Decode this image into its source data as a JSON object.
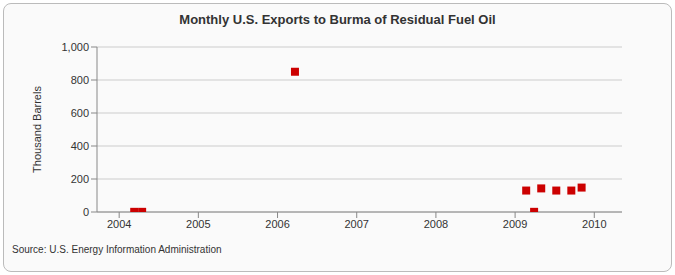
{
  "chart_data": {
    "type": "scatter",
    "title": "Monthly U.S. Exports to Burma of Residual Fuel Oil",
    "y_label": "Thousand Barrels",
    "source": "Source: U.S. Energy Information Administration",
    "x": [
      2004.19,
      2004.29,
      2006.22,
      2009.14,
      2009.24,
      2009.33,
      2009.52,
      2009.71,
      2009.84
    ],
    "values": [
      1,
      1,
      850,
      130,
      1,
      143,
      130,
      130,
      148
    ],
    "color": "#cc0000",
    "marker": "square",
    "xlim": [
      2003.72,
      2010.35
    ],
    "xticks": [
      2004,
      2005,
      2006,
      2007,
      2008,
      2009,
      2010
    ],
    "ylim": [
      0,
      1000
    ],
    "yticks": [
      0,
      200,
      400,
      600,
      800,
      {
        "value": 1000,
        "label": "1,000"
      }
    ],
    "grid": true
  }
}
